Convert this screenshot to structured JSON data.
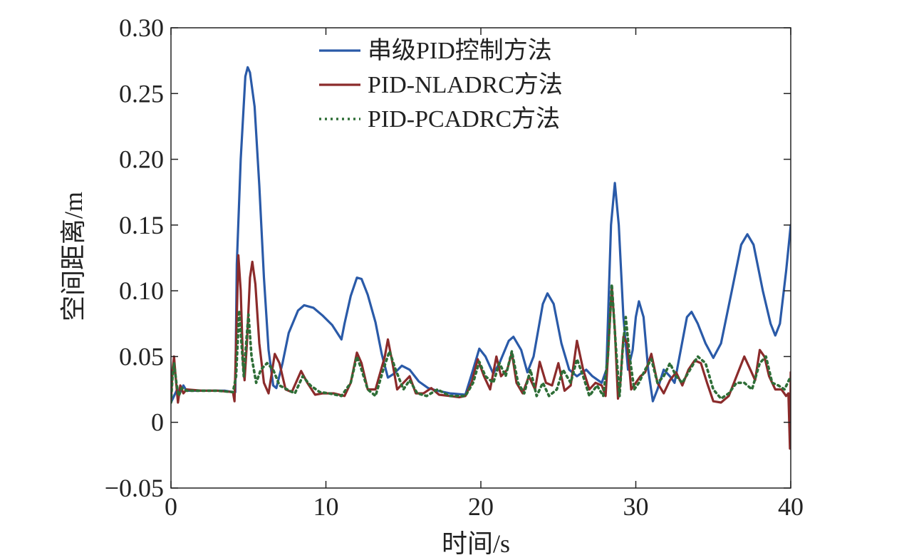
{
  "chart_data": {
    "type": "line",
    "title": "",
    "xlabel": "时间/s",
    "ylabel": "空间距离/m",
    "xlim": [
      0,
      40
    ],
    "ylim": [
      -0.05,
      0.3
    ],
    "xticks": [
      0,
      10,
      20,
      30,
      40
    ],
    "xtick_labels": [
      "0",
      "10",
      "20",
      "30",
      "40"
    ],
    "yticks": [
      -0.05,
      0,
      0.05,
      0.1,
      0.15,
      0.2,
      0.25,
      0.3
    ],
    "ytick_labels": [
      "−0.05",
      "0",
      "0.05",
      "0.10",
      "0.15",
      "0.20",
      "0.25",
      "0.30"
    ],
    "grid": false,
    "legend_position": "top-center",
    "series": [
      {
        "name": "串级PID控制方法",
        "color": "#2a5aa8",
        "style": "solid",
        "points": [
          [
            0,
            0.015
          ],
          [
            0.2,
            0.02
          ],
          [
            0.4,
            0.025
          ],
          [
            0.6,
            0.023
          ],
          [
            0.8,
            0.028
          ],
          [
            1.0,
            0.024
          ],
          [
            1.5,
            0.024
          ],
          [
            2.5,
            0.024
          ],
          [
            3.5,
            0.024
          ],
          [
            4.0,
            0.023
          ],
          [
            4.15,
            0.023
          ],
          [
            4.25,
            0.12
          ],
          [
            4.5,
            0.2
          ],
          [
            4.8,
            0.263
          ],
          [
            4.95,
            0.27
          ],
          [
            5.1,
            0.266
          ],
          [
            5.4,
            0.24
          ],
          [
            5.7,
            0.18
          ],
          [
            6.0,
            0.11
          ],
          [
            6.3,
            0.055
          ],
          [
            6.6,
            0.028
          ],
          [
            6.8,
            0.026
          ],
          [
            7.2,
            0.045
          ],
          [
            7.6,
            0.068
          ],
          [
            8.2,
            0.085
          ],
          [
            8.6,
            0.089
          ],
          [
            9.2,
            0.087
          ],
          [
            9.8,
            0.081
          ],
          [
            10.4,
            0.074
          ],
          [
            11.0,
            0.063
          ],
          [
            11.2,
            0.075
          ],
          [
            11.6,
            0.096
          ],
          [
            12.0,
            0.11
          ],
          [
            12.3,
            0.109
          ],
          [
            12.7,
            0.097
          ],
          [
            13.2,
            0.076
          ],
          [
            13.6,
            0.052
          ],
          [
            14.0,
            0.034
          ],
          [
            14.4,
            0.037
          ],
          [
            14.9,
            0.043
          ],
          [
            15.4,
            0.04
          ],
          [
            16.0,
            0.031
          ],
          [
            16.6,
            0.026
          ],
          [
            17.2,
            0.024
          ],
          [
            18.0,
            0.022
          ],
          [
            19.0,
            0.021
          ],
          [
            19.5,
            0.04
          ],
          [
            19.9,
            0.056
          ],
          [
            20.3,
            0.05
          ],
          [
            20.8,
            0.037
          ],
          [
            21.2,
            0.045
          ],
          [
            21.8,
            0.062
          ],
          [
            22.1,
            0.065
          ],
          [
            22.6,
            0.055
          ],
          [
            23.0,
            0.038
          ],
          [
            23.4,
            0.05
          ],
          [
            24.0,
            0.09
          ],
          [
            24.3,
            0.098
          ],
          [
            24.7,
            0.09
          ],
          [
            25.2,
            0.06
          ],
          [
            25.7,
            0.04
          ],
          [
            26.2,
            0.035
          ],
          [
            26.8,
            0.04
          ],
          [
            27.2,
            0.035
          ],
          [
            27.8,
            0.03
          ],
          [
            28.1,
            0.04
          ],
          [
            28.4,
            0.15
          ],
          [
            28.65,
            0.182
          ],
          [
            28.9,
            0.15
          ],
          [
            29.2,
            0.08
          ],
          [
            29.5,
            0.04
          ],
          [
            29.8,
            0.055
          ],
          [
            30.0,
            0.08
          ],
          [
            30.2,
            0.092
          ],
          [
            30.5,
            0.08
          ],
          [
            30.8,
            0.04
          ],
          [
            31.1,
            0.016
          ],
          [
            31.4,
            0.025
          ],
          [
            31.8,
            0.04
          ],
          [
            32.2,
            0.035
          ],
          [
            32.5,
            0.03
          ],
          [
            32.9,
            0.055
          ],
          [
            33.3,
            0.08
          ],
          [
            33.6,
            0.084
          ],
          [
            34.0,
            0.075
          ],
          [
            34.5,
            0.06
          ],
          [
            35.0,
            0.049
          ],
          [
            35.5,
            0.06
          ],
          [
            36.2,
            0.1
          ],
          [
            36.8,
            0.135
          ],
          [
            37.2,
            0.143
          ],
          [
            37.6,
            0.135
          ],
          [
            38.2,
            0.1
          ],
          [
            38.7,
            0.075
          ],
          [
            39.0,
            0.066
          ],
          [
            39.3,
            0.075
          ],
          [
            39.7,
            0.115
          ],
          [
            40.0,
            0.15
          ]
        ]
      },
      {
        "name": "PID-NLADRC方法",
        "color": "#8b2b2b",
        "style": "solid",
        "points": [
          [
            0,
            0.015
          ],
          [
            0.1,
            0.04
          ],
          [
            0.2,
            0.05
          ],
          [
            0.3,
            0.035
          ],
          [
            0.45,
            0.015
          ],
          [
            0.6,
            0.028
          ],
          [
            0.8,
            0.022
          ],
          [
            1.0,
            0.025
          ],
          [
            2.0,
            0.024
          ],
          [
            3.0,
            0.024
          ],
          [
            4.0,
            0.023
          ],
          [
            4.1,
            0.016
          ],
          [
            4.2,
            0.06
          ],
          [
            4.35,
            0.127
          ],
          [
            4.5,
            0.1
          ],
          [
            4.65,
            0.045
          ],
          [
            4.75,
            0.032
          ],
          [
            4.9,
            0.06
          ],
          [
            5.1,
            0.11
          ],
          [
            5.25,
            0.122
          ],
          [
            5.45,
            0.105
          ],
          [
            5.7,
            0.06
          ],
          [
            6.0,
            0.03
          ],
          [
            6.3,
            0.022
          ],
          [
            6.7,
            0.052
          ],
          [
            7.0,
            0.045
          ],
          [
            7.4,
            0.025
          ],
          [
            7.8,
            0.023
          ],
          [
            8.4,
            0.039
          ],
          [
            8.8,
            0.03
          ],
          [
            9.3,
            0.021
          ],
          [
            9.8,
            0.022
          ],
          [
            10.5,
            0.022
          ],
          [
            11.2,
            0.02
          ],
          [
            11.6,
            0.03
          ],
          [
            12.0,
            0.053
          ],
          [
            12.3,
            0.045
          ],
          [
            12.7,
            0.025
          ],
          [
            13.2,
            0.025
          ],
          [
            13.8,
            0.05
          ],
          [
            14.0,
            0.063
          ],
          [
            14.3,
            0.045
          ],
          [
            14.6,
            0.025
          ],
          [
            15.0,
            0.03
          ],
          [
            15.4,
            0.035
          ],
          [
            15.8,
            0.022
          ],
          [
            16.3,
            0.022
          ],
          [
            16.8,
            0.026
          ],
          [
            17.3,
            0.021
          ],
          [
            18.0,
            0.02
          ],
          [
            18.6,
            0.019
          ],
          [
            19.0,
            0.02
          ],
          [
            19.4,
            0.03
          ],
          [
            19.8,
            0.048
          ],
          [
            20.2,
            0.035
          ],
          [
            20.6,
            0.025
          ],
          [
            21.0,
            0.05
          ],
          [
            21.3,
            0.035
          ],
          [
            21.7,
            0.04
          ],
          [
            22.0,
            0.053
          ],
          [
            22.3,
            0.03
          ],
          [
            22.7,
            0.022
          ],
          [
            23.1,
            0.035
          ],
          [
            23.5,
            0.025
          ],
          [
            23.8,
            0.046
          ],
          [
            24.2,
            0.03
          ],
          [
            24.6,
            0.028
          ],
          [
            25.0,
            0.045
          ],
          [
            25.4,
            0.024
          ],
          [
            25.8,
            0.028
          ],
          [
            26.2,
            0.062
          ],
          [
            26.6,
            0.04
          ],
          [
            27.0,
            0.025
          ],
          [
            27.4,
            0.03
          ],
          [
            27.8,
            0.028
          ],
          [
            28.05,
            0.02
          ],
          [
            28.25,
            0.06
          ],
          [
            28.45,
            0.103
          ],
          [
            28.65,
            0.07
          ],
          [
            28.85,
            0.018
          ],
          [
            29.0,
            0.03
          ],
          [
            29.2,
            0.065
          ],
          [
            29.45,
            0.06
          ],
          [
            29.7,
            0.025
          ],
          [
            30.0,
            0.03
          ],
          [
            30.3,
            0.035
          ],
          [
            30.6,
            0.038
          ],
          [
            31.0,
            0.052
          ],
          [
            31.4,
            0.03
          ],
          [
            31.8,
            0.022
          ],
          [
            32.2,
            0.032
          ],
          [
            32.6,
            0.038
          ],
          [
            33.0,
            0.028
          ],
          [
            33.4,
            0.04
          ],
          [
            33.8,
            0.047
          ],
          [
            34.2,
            0.045
          ],
          [
            34.6,
            0.03
          ],
          [
            35.0,
            0.016
          ],
          [
            35.5,
            0.015
          ],
          [
            36.0,
            0.02
          ],
          [
            36.5,
            0.035
          ],
          [
            37.0,
            0.05
          ],
          [
            37.4,
            0.04
          ],
          [
            37.7,
            0.032
          ],
          [
            38.0,
            0.055
          ],
          [
            38.3,
            0.05
          ],
          [
            38.6,
            0.035
          ],
          [
            39.0,
            0.025
          ],
          [
            39.4,
            0.025
          ],
          [
            39.7,
            0.02
          ],
          [
            39.85,
            0.022
          ],
          [
            39.95,
            -0.02
          ],
          [
            40.0,
            0.038
          ]
        ]
      },
      {
        "name": "PID-PCADRC方法",
        "color": "#2e6e37",
        "style": "dotted",
        "points": [
          [
            0,
            0.015
          ],
          [
            0.1,
            0.035
          ],
          [
            0.2,
            0.045
          ],
          [
            0.35,
            0.03
          ],
          [
            0.5,
            0.02
          ],
          [
            0.7,
            0.026
          ],
          [
            1.0,
            0.024
          ],
          [
            2.0,
            0.024
          ],
          [
            3.0,
            0.024
          ],
          [
            4.0,
            0.023
          ],
          [
            4.2,
            0.035
          ],
          [
            4.4,
            0.085
          ],
          [
            4.55,
            0.06
          ],
          [
            4.7,
            0.035
          ],
          [
            4.85,
            0.06
          ],
          [
            5.0,
            0.082
          ],
          [
            5.2,
            0.05
          ],
          [
            5.5,
            0.03
          ],
          [
            5.8,
            0.04
          ],
          [
            6.2,
            0.045
          ],
          [
            6.6,
            0.04
          ],
          [
            7.0,
            0.028
          ],
          [
            7.5,
            0.025
          ],
          [
            8.0,
            0.022
          ],
          [
            8.5,
            0.035
          ],
          [
            9.0,
            0.028
          ],
          [
            9.6,
            0.023
          ],
          [
            10.2,
            0.022
          ],
          [
            11.0,
            0.02
          ],
          [
            11.6,
            0.03
          ],
          [
            12.0,
            0.05
          ],
          [
            12.3,
            0.04
          ],
          [
            12.7,
            0.025
          ],
          [
            13.2,
            0.02
          ],
          [
            13.7,
            0.04
          ],
          [
            14.1,
            0.054
          ],
          [
            14.5,
            0.04
          ],
          [
            15.0,
            0.025
          ],
          [
            15.4,
            0.032
          ],
          [
            15.9,
            0.022
          ],
          [
            16.5,
            0.02
          ],
          [
            17.2,
            0.025
          ],
          [
            18.0,
            0.02
          ],
          [
            19.0,
            0.02
          ],
          [
            19.5,
            0.03
          ],
          [
            19.9,
            0.046
          ],
          [
            20.3,
            0.035
          ],
          [
            20.8,
            0.03
          ],
          [
            21.2,
            0.045
          ],
          [
            21.6,
            0.035
          ],
          [
            22.0,
            0.054
          ],
          [
            22.4,
            0.03
          ],
          [
            22.8,
            0.022
          ],
          [
            23.2,
            0.04
          ],
          [
            23.6,
            0.02
          ],
          [
            24.0,
            0.03
          ],
          [
            24.4,
            0.02
          ],
          [
            24.9,
            0.025
          ],
          [
            25.3,
            0.04
          ],
          [
            25.8,
            0.03
          ],
          [
            26.2,
            0.048
          ],
          [
            26.6,
            0.035
          ],
          [
            27.0,
            0.02
          ],
          [
            27.5,
            0.028
          ],
          [
            27.9,
            0.02
          ],
          [
            28.2,
            0.05
          ],
          [
            28.45,
            0.105
          ],
          [
            28.7,
            0.06
          ],
          [
            28.95,
            0.02
          ],
          [
            29.15,
            0.055
          ],
          [
            29.35,
            0.08
          ],
          [
            29.6,
            0.05
          ],
          [
            29.9,
            0.025
          ],
          [
            30.2,
            0.03
          ],
          [
            30.6,
            0.04
          ],
          [
            31.0,
            0.048
          ],
          [
            31.4,
            0.03
          ],
          [
            31.8,
            0.035
          ],
          [
            32.2,
            0.045
          ],
          [
            32.6,
            0.035
          ],
          [
            33.0,
            0.03
          ],
          [
            33.5,
            0.04
          ],
          [
            34.0,
            0.05
          ],
          [
            34.5,
            0.045
          ],
          [
            35.0,
            0.025
          ],
          [
            35.5,
            0.018
          ],
          [
            36.0,
            0.022
          ],
          [
            36.5,
            0.03
          ],
          [
            37.0,
            0.03
          ],
          [
            37.5,
            0.025
          ],
          [
            38.0,
            0.045
          ],
          [
            38.4,
            0.05
          ],
          [
            38.8,
            0.03
          ],
          [
            39.2,
            0.028
          ],
          [
            39.6,
            0.025
          ],
          [
            40.0,
            0.035
          ]
        ]
      }
    ]
  }
}
